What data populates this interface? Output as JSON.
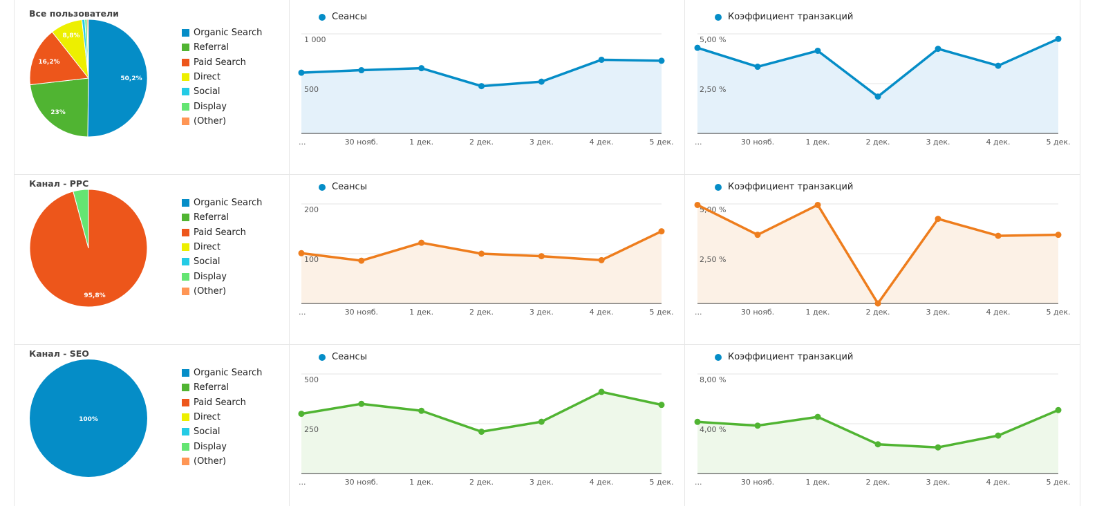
{
  "metrics": {
    "sessions": "Сеансы",
    "conversion": "Коэффициент транзакций"
  },
  "dates": [
    "...",
    "30 нояб.",
    "1 дек.",
    "2 дек.",
    "3 дек.",
    "4 дек.",
    "5 дек."
  ],
  "legend": [
    {
      "label": "Organic Search",
      "color": "#058dc7"
    },
    {
      "label": "Referral",
      "color": "#50b432"
    },
    {
      "label": "Paid Search",
      "color": "#ed561b"
    },
    {
      "label": "Direct",
      "color": "#edef00"
    },
    {
      "label": "Social",
      "color": "#24cbe5"
    },
    {
      "label": "Display",
      "color": "#64e572"
    },
    {
      "label": "(Other)",
      "color": "#ff9655"
    }
  ],
  "segments": [
    {
      "title": "Все пользователи",
      "line_color": "#058dc7",
      "fill_color": "#e4f1fa",
      "pie_labels": [
        "50,2%",
        "23%",
        "16,2%",
        "8,8%"
      ]
    },
    {
      "title": "Канал - PPC",
      "line_color": "#ee7d1d",
      "fill_color": "#fcf1e6",
      "pie_labels": [
        "95,8%"
      ]
    },
    {
      "title": "Канал - SEO",
      "line_color": "#50b432",
      "fill_color": "#eef8ea",
      "pie_labels": [
        "100%"
      ]
    }
  ],
  "chart_data": [
    {
      "type": "pie",
      "title": "Все пользователи",
      "unit": "%",
      "slices": [
        {
          "label": "Organic Search",
          "value": 50.2
        },
        {
          "label": "Referral",
          "value": 23
        },
        {
          "label": "Paid Search",
          "value": 16.2
        },
        {
          "label": "Direct",
          "value": 8.8
        },
        {
          "label": "Social",
          "value": 0.8
        },
        {
          "label": "Display",
          "value": 0.6
        },
        {
          "label": "(Other)",
          "value": 0.4
        }
      ]
    },
    {
      "type": "line",
      "title": "Сеансы",
      "x": [
        "...",
        "30 нояб.",
        "1 дек.",
        "2 дек.",
        "3 дек.",
        "4 дек.",
        "5 дек."
      ],
      "y": [
        610,
        635,
        655,
        475,
        520,
        740,
        730
      ],
      "yticks": [
        "1 000",
        "500"
      ],
      "ylim": [
        0,
        1000
      ]
    },
    {
      "type": "line",
      "title": "Коэффициент транзакций",
      "x": [
        "...",
        "30 нояб.",
        "1 дек.",
        "2 дек.",
        "3 дек.",
        "4 дек.",
        "5 дек."
      ],
      "y": [
        4.3,
        3.35,
        4.15,
        1.85,
        4.25,
        3.4,
        4.75
      ],
      "unit": "%",
      "yticks": [
        "5,00 %",
        "2,50 %"
      ],
      "ylim": [
        0,
        5
      ]
    },
    {
      "type": "pie",
      "title": "Канал - PPC",
      "unit": "%",
      "slices": [
        {
          "label": "Paid Search",
          "value": 95.8
        },
        {
          "label": "Display",
          "value": 4.2
        }
      ]
    },
    {
      "type": "line",
      "title": "Сеансы",
      "x": [
        "...",
        "30 нояб.",
        "1 дек.",
        "2 дек.",
        "3 дек.",
        "4 дек.",
        "5 дек."
      ],
      "y": [
        101,
        86,
        122,
        100,
        95,
        87,
        145
      ],
      "yticks": [
        "200",
        "100"
      ],
      "ylim": [
        0,
        200
      ]
    },
    {
      "type": "line",
      "title": "Коэффициент транзакций",
      "x": [
        "...",
        "30 нояб.",
        "1 дек.",
        "2 дек.",
        "3 дек.",
        "4 дек.",
        "5 дек."
      ],
      "y": [
        4.95,
        3.45,
        4.95,
        0.0,
        4.25,
        3.4,
        3.45
      ],
      "unit": "%",
      "yticks": [
        "5,00 %",
        "2,50 %"
      ],
      "ylim": [
        0,
        5
      ]
    },
    {
      "type": "pie",
      "title": "Канал - SEO",
      "unit": "%",
      "slices": [
        {
          "label": "Organic Search",
          "value": 100
        }
      ]
    },
    {
      "type": "line",
      "title": "Сеансы",
      "x": [
        "...",
        "30 нояб.",
        "1 дек.",
        "2 дек.",
        "3 дек.",
        "4 дек.",
        "5 дек."
      ],
      "y": [
        300,
        350,
        315,
        210,
        260,
        410,
        345
      ],
      "yticks": [
        "500",
        "250"
      ],
      "ylim": [
        0,
        500
      ]
    },
    {
      "type": "line",
      "title": "Коэффициент транзакций",
      "x": [
        "...",
        "30 нояб.",
        "1 дек.",
        "2 дек.",
        "3 дек.",
        "4 дек.",
        "5 дек."
      ],
      "y": [
        4.15,
        3.85,
        4.55,
        2.35,
        2.1,
        3.05,
        5.1
      ],
      "unit": "%",
      "yticks": [
        "8,00 %",
        "4,00 %"
      ],
      "ylim": [
        0,
        8
      ]
    }
  ]
}
